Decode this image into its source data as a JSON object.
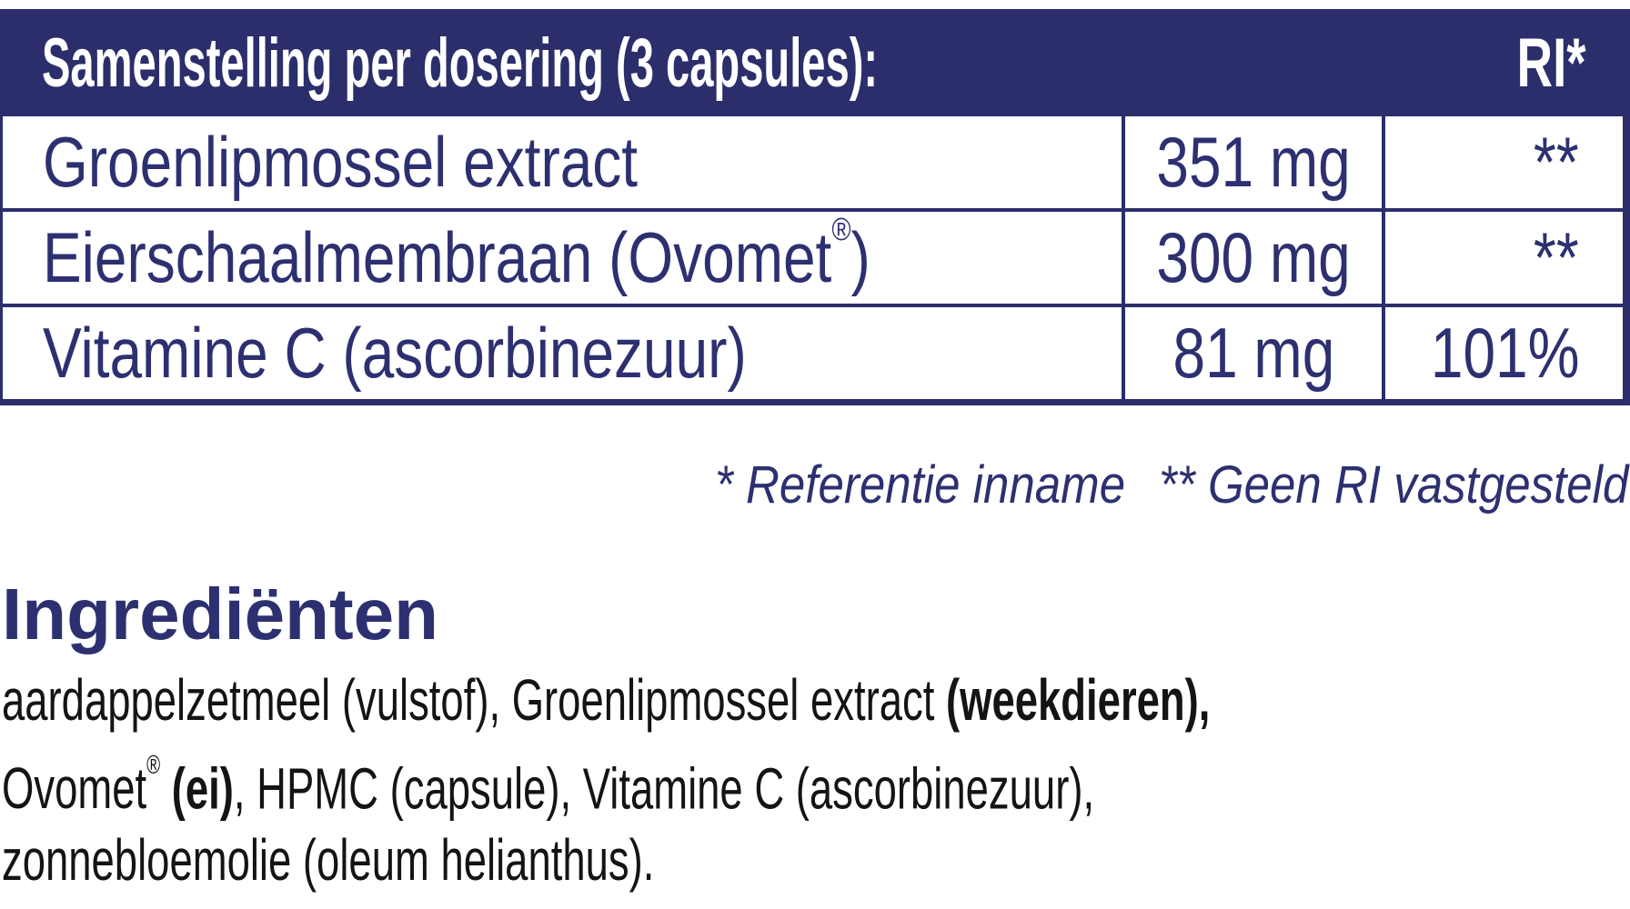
{
  "colors": {
    "navy_background": "#2b2e6b",
    "navy_text": "#2d3070",
    "body_text": "#141414",
    "white": "#ffffff"
  },
  "table": {
    "title": "Samenstelling per dosering (3 capsules):",
    "ri_header": "RI*",
    "rows": [
      {
        "name": "Groenlipmossel extract",
        "amount": "351 mg",
        "ri": "**"
      },
      {
        "name": "Eierschaalmembraan (Ovomet®)",
        "amount": "300 mg",
        "ri": "**"
      },
      {
        "name": "Vitamine C (ascorbinezuur)",
        "amount": "81 mg",
        "ri": "101%"
      }
    ]
  },
  "footnotes": {
    "reference": "* Referentie inname",
    "no_ri": "** Geen RI vastgesteld"
  },
  "ingredients": {
    "heading": "Ingrediënten",
    "lines": [
      [
        {
          "t": "aardappelzetmeel (vulstof), Groenlipmossel extract ",
          "b": false
        },
        {
          "t": "(weekdieren),",
          "b": true
        }
      ],
      [
        {
          "t": "Ovomet® ",
          "b": false
        },
        {
          "t": "(ei)",
          "b": true
        },
        {
          "t": ", HPMC (capsule), Vitamine C (ascorbinezuur),",
          "b": false
        }
      ],
      [
        {
          "t": "zonnebloemolie (oleum helianthus).",
          "b": false
        }
      ]
    ]
  }
}
